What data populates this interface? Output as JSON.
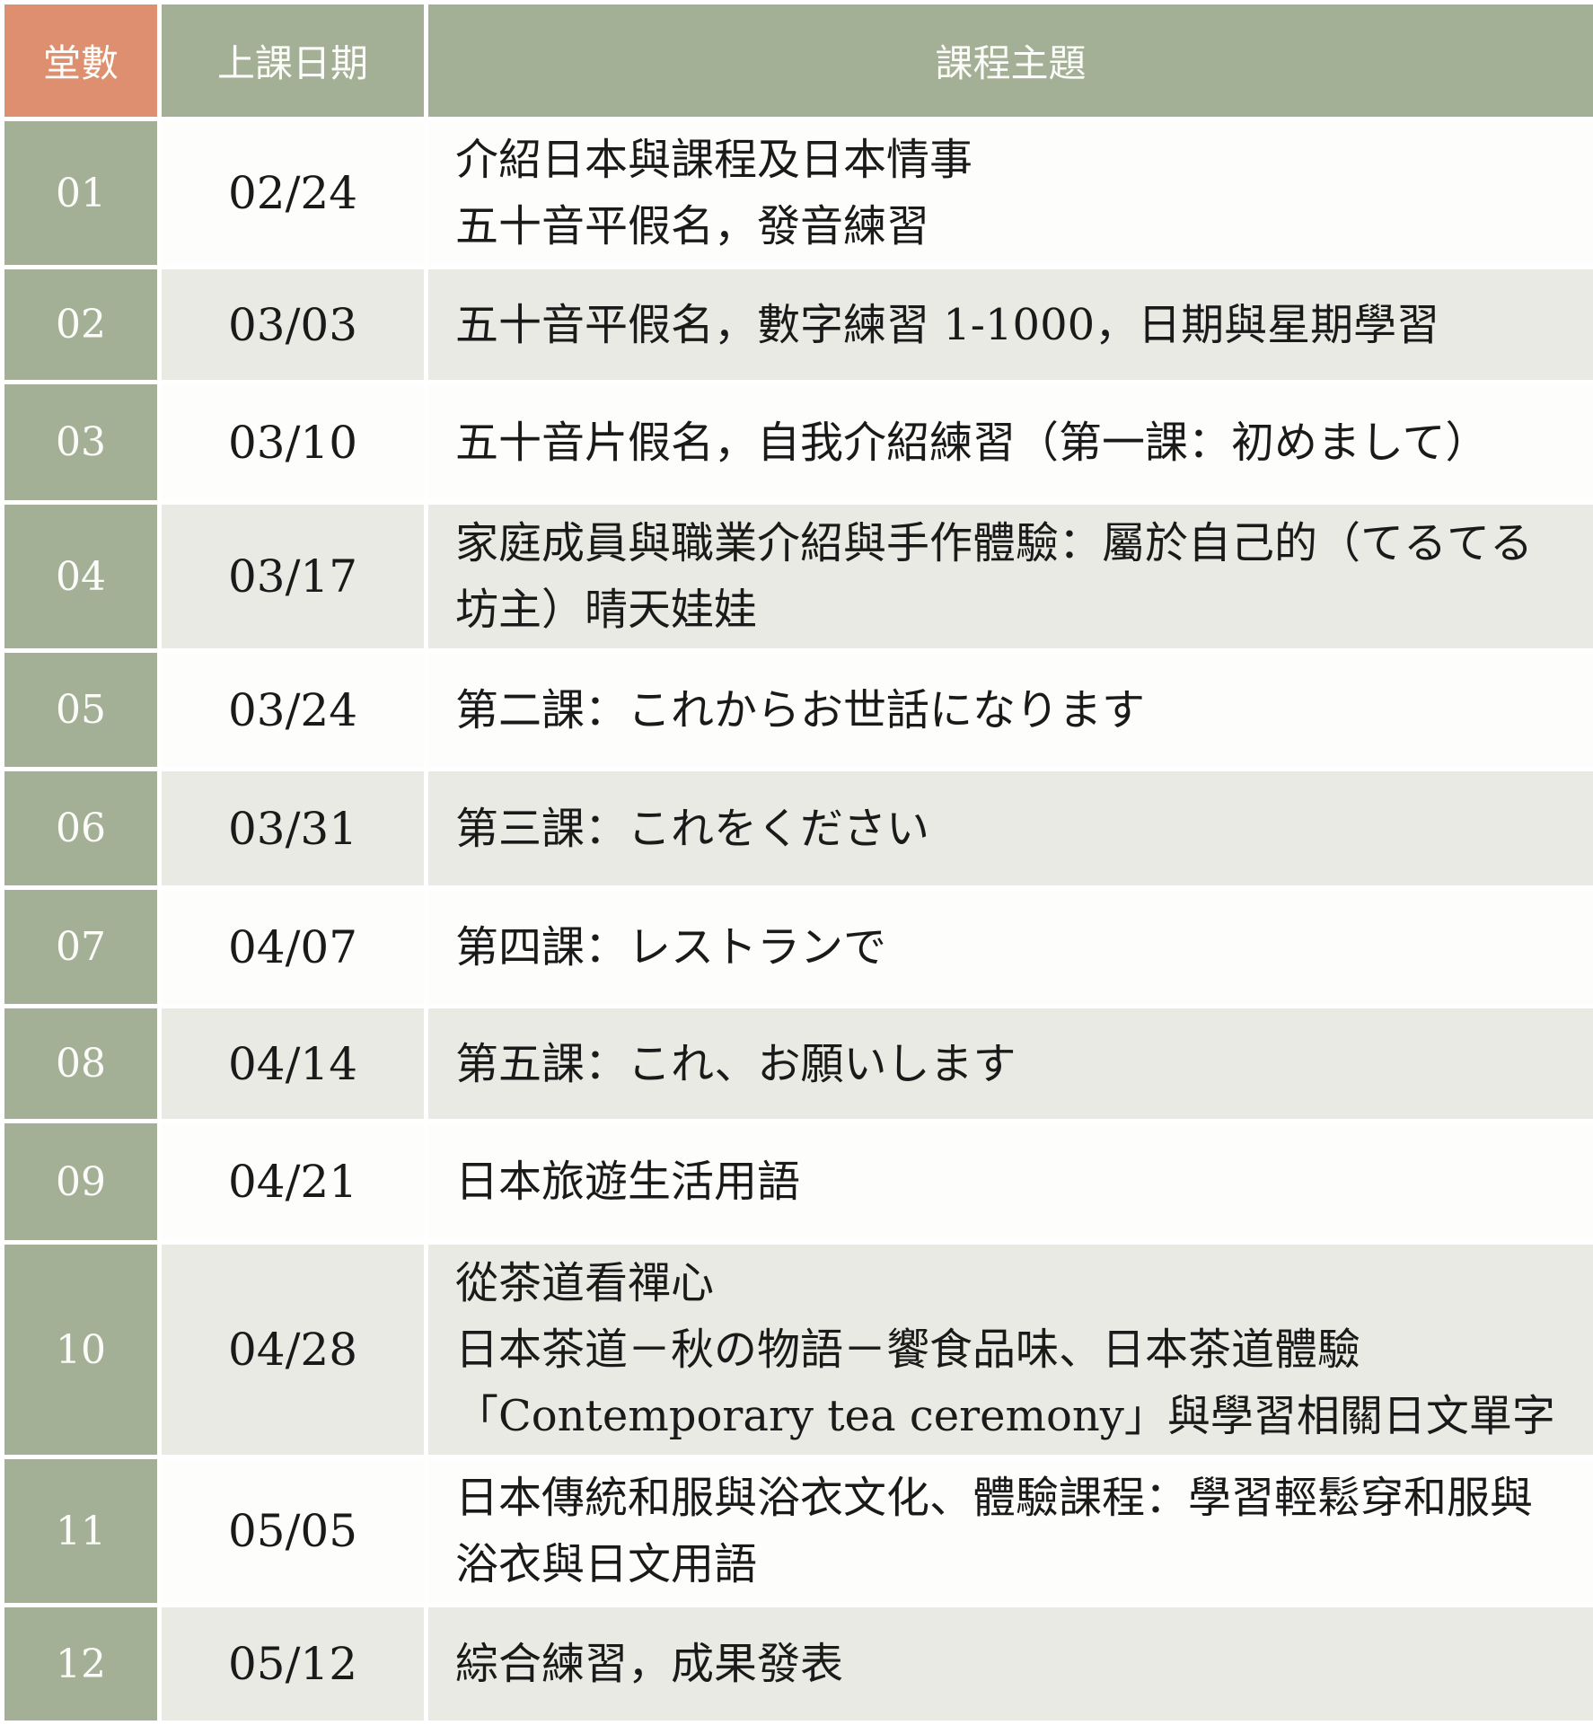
{
  "table": {
    "columns": [
      {
        "label": "堂數"
      },
      {
        "label": "上課日期"
      },
      {
        "label": "課程主題"
      }
    ],
    "rows": [
      {
        "no": "01",
        "date": "02/24",
        "topic_lines": [
          "介紹日本與課程及日本情事",
          "五十音平假名，發音練習"
        ]
      },
      {
        "no": "02",
        "date": "03/03",
        "topic_lines": [
          "五十音平假名，數字練習 1-1000，日期與星期學習"
        ]
      },
      {
        "no": "03",
        "date": "03/10",
        "topic_lines": [
          "五十音片假名，自我介紹練習（第一課：初めまして）"
        ]
      },
      {
        "no": "04",
        "date": "03/17",
        "topic_lines": [
          "家庭成員與職業介紹與手作體驗：屬於自己的（てるてる坊主）晴天娃娃"
        ]
      },
      {
        "no": "05",
        "date": "03/24",
        "topic_lines": [
          "第二課：これからお世話になります"
        ]
      },
      {
        "no": "06",
        "date": "03/31",
        "topic_lines": [
          "第三課：これをください"
        ]
      },
      {
        "no": "07",
        "date": "04/07",
        "topic_lines": [
          "第四課：レストランで"
        ]
      },
      {
        "no": "08",
        "date": "04/14",
        "topic_lines": [
          "第五課：これ、お願いします"
        ]
      },
      {
        "no": "09",
        "date": "04/21",
        "topic_lines": [
          "日本旅遊生活用語"
        ]
      },
      {
        "no": "10",
        "date": "04/28",
        "topic_lines": [
          "從茶道看禪心",
          "日本茶道－秋の物語－饗食品味、日本茶道體驗",
          "「Contemporary tea ceremony」與學習相關日文單字"
        ]
      },
      {
        "no": "11",
        "date": "05/05",
        "topic_lines": [
          "日本傳統和服與浴衣文化、體驗課程：學習輕鬆穿和服與浴衣與日文用語"
        ]
      },
      {
        "no": "12",
        "date": "05/12",
        "topic_lines": [
          "綜合練習，成果發表"
        ]
      }
    ]
  },
  "colors": {
    "header_accent": "#DE8F6F",
    "header_green": "#A4B095",
    "row_alt": "#E9EAE3",
    "row_white": "#FDFDFC",
    "border": "#FFFFFF",
    "text": "#1A1A1A"
  }
}
